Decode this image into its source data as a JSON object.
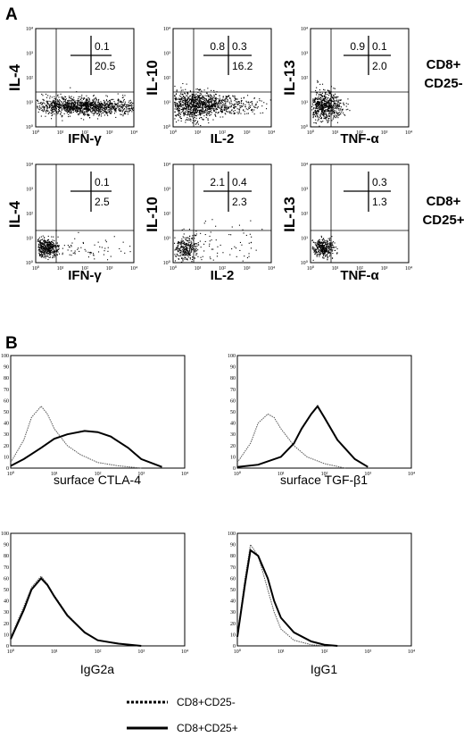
{
  "panels": {
    "A": {
      "letter": "A",
      "rows": [
        {
          "population": [
            "CD8+",
            "CD25-"
          ],
          "plots": [
            {
              "ylabel": "IL-4",
              "xlabel": "IFN-γ",
              "q_ul": "",
              "q_ur": "0.1",
              "q_lr": "20.5"
            },
            {
              "ylabel": "IL-10",
              "xlabel": "IL-2",
              "q_ul": "0.8",
              "q_ur": "0.3",
              "q_lr": "16.2"
            },
            {
              "ylabel": "IL-13",
              "xlabel": "TNF-α",
              "q_ul": "0.9",
              "q_ur": "0.1",
              "q_lr": "2.0"
            }
          ]
        },
        {
          "population": [
            "CD8+",
            "CD25+"
          ],
          "plots": [
            {
              "ylabel": "IL-4",
              "xlabel": "IFN-γ",
              "q_ul": "",
              "q_ur": "0.1",
              "q_lr": "2.5"
            },
            {
              "ylabel": "IL-10",
              "xlabel": "IL-2",
              "q_ul": "2.1",
              "q_ur": "0.4",
              "q_lr": "2.3"
            },
            {
              "ylabel": "IL-13",
              "xlabel": "TNF-α",
              "q_ul": "",
              "q_ur": "0.3",
              "q_lr": "1.3"
            }
          ]
        }
      ],
      "decade_labels": [
        "10⁰",
        "10¹",
        "10²",
        "10³",
        "10⁴"
      ]
    },
    "B": {
      "letter": "B",
      "y_ticks": [
        "0",
        "10",
        "20",
        "30",
        "40",
        "50",
        "60",
        "70",
        "80",
        "90",
        "100"
      ],
      "x_ticks": [
        "10⁰",
        "10¹",
        "10²",
        "10³",
        "10⁴"
      ]
    }
  },
  "chart_data": [
    {
      "type": "line",
      "xlabel": "surface CTLA-4",
      "x_scale": "log",
      "xlim": [
        1,
        10000
      ],
      "ylim": [
        0,
        100
      ],
      "series": [
        {
          "name": "CD8+CD25-",
          "style": "dotted",
          "x": [
            1,
            2,
            3,
            5,
            7,
            10,
            20,
            40,
            100,
            300,
            1000
          ],
          "values": [
            5,
            25,
            45,
            55,
            48,
            35,
            20,
            12,
            5,
            2,
            0
          ]
        },
        {
          "name": "CD8+CD25+",
          "style": "solid",
          "x": [
            1,
            2,
            5,
            10,
            20,
            50,
            100,
            200,
            500,
            1000,
            3000
          ],
          "values": [
            2,
            8,
            18,
            26,
            30,
            33,
            32,
            28,
            18,
            8,
            1
          ]
        }
      ]
    },
    {
      "type": "line",
      "xlabel": "surface TGF-β1",
      "x_scale": "log",
      "xlim": [
        1,
        10000
      ],
      "ylim": [
        0,
        100
      ],
      "series": [
        {
          "name": "CD8+CD25-",
          "style": "dotted",
          "x": [
            1,
            2,
            3,
            5,
            7,
            10,
            20,
            40,
            100,
            300
          ],
          "values": [
            5,
            22,
            40,
            48,
            45,
            35,
            20,
            10,
            4,
            0
          ]
        },
        {
          "name": "CD8+CD25+",
          "style": "solid",
          "x": [
            1,
            3,
            10,
            20,
            30,
            50,
            70,
            100,
            200,
            500,
            1000
          ],
          "values": [
            1,
            3,
            10,
            22,
            35,
            48,
            55,
            45,
            25,
            8,
            1
          ]
        }
      ]
    },
    {
      "type": "line",
      "xlabel": "IgG2a",
      "x_scale": "log",
      "xlim": [
        1,
        10000
      ],
      "ylim": [
        0,
        100
      ],
      "series": [
        {
          "name": "CD8+CD25-",
          "style": "dotted",
          "x": [
            1,
            2,
            3,
            5,
            7,
            10,
            20,
            50,
            100,
            300,
            1000
          ],
          "values": [
            8,
            35,
            52,
            62,
            55,
            45,
            28,
            12,
            5,
            2,
            0
          ]
        },
        {
          "name": "CD8+CD25+",
          "style": "solid",
          "x": [
            1,
            2,
            3,
            5,
            7,
            10,
            20,
            50,
            100,
            300,
            1000
          ],
          "values": [
            6,
            32,
            50,
            60,
            54,
            44,
            27,
            12,
            5,
            2,
            0
          ]
        }
      ]
    },
    {
      "type": "line",
      "xlabel": "IgG1",
      "x_scale": "log",
      "xlim": [
        1,
        10000
      ],
      "ylim": [
        0,
        100
      ],
      "series": [
        {
          "name": "CD8+CD25-",
          "style": "dotted",
          "x": [
            1,
            1.5,
            2,
            3,
            5,
            7,
            10,
            20,
            50,
            100
          ],
          "values": [
            10,
            60,
            90,
            80,
            50,
            30,
            15,
            5,
            1,
            0
          ]
        },
        {
          "name": "CD8+CD25+",
          "style": "solid",
          "x": [
            1,
            1.5,
            2,
            3,
            5,
            7,
            10,
            20,
            50,
            100,
            200
          ],
          "values": [
            8,
            55,
            85,
            80,
            60,
            40,
            25,
            12,
            4,
            1,
            0
          ]
        }
      ]
    }
  ],
  "legend": [
    {
      "label": "CD8+CD25-",
      "style": "dotted"
    },
    {
      "label": "CD8+CD25+",
      "style": "solid"
    }
  ]
}
